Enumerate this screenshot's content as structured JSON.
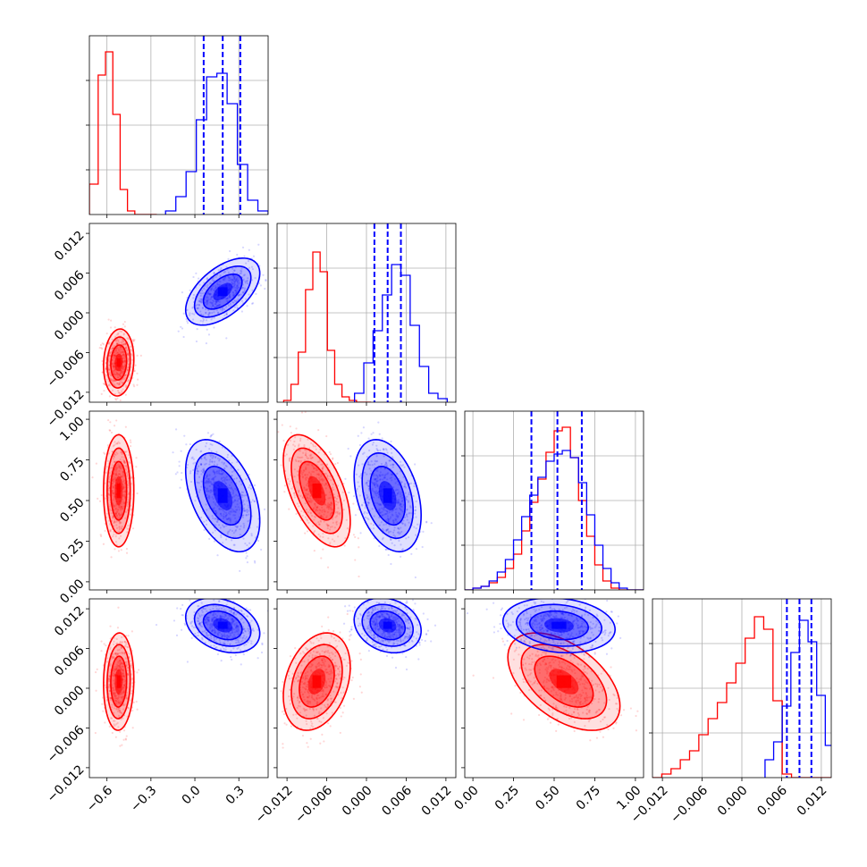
{
  "chart_data": {
    "type": "corner",
    "parameters": 4,
    "grid": true,
    "colors": {
      "red": "#ff0000",
      "blue": "#0000ff"
    },
    "ranges": [
      [
        -0.72,
        0.5
      ],
      [
        -0.0135,
        0.0135
      ],
      [
        -0.05,
        1.05
      ],
      [
        -0.0135,
        0.0135
      ]
    ],
    "tick_values": [
      [
        -0.6,
        -0.3,
        0.0,
        0.3
      ],
      [
        -0.012,
        -0.006,
        0.0,
        0.006,
        0.012
      ],
      [
        0.0,
        0.25,
        0.5,
        0.75,
        1.0
      ],
      [
        -0.012,
        -0.006,
        0.0,
        0.006,
        0.012
      ]
    ],
    "tick_labels": [
      [
        "−0.6",
        "−0.3",
        "0.0",
        "0.3"
      ],
      [
        "−0.012",
        "−0.006",
        "0.000",
        "0.006",
        "0.012"
      ],
      [
        "0.00",
        "0.25",
        "0.50",
        "0.75",
        "1.00"
      ],
      [
        "−0.012",
        "−0.006",
        "0.000",
        "0.006",
        "0.012"
      ]
    ],
    "series": [
      {
        "color": "red",
        "means": [
          -0.52,
          -0.0075,
          0.56,
          0.001
        ],
        "sds": [
          0.045,
          0.0022,
          0.15,
          0.0032
        ],
        "corr": [
          [
            1,
            0.1,
            0,
            0.05
          ],
          [
            0.1,
            1,
            -0.55,
            0.3
          ],
          [
            0,
            -0.55,
            1,
            -0.5
          ],
          [
            0.05,
            0.3,
            -0.5,
            1
          ]
        ],
        "hist_edges": [
          [
            -0.72,
            -0.66,
            -0.61,
            -0.56,
            -0.51,
            -0.46,
            -0.41,
            -0.36,
            -0.31,
            -0.26
          ],
          [
            -0.0125,
            -0.0114,
            -0.0103,
            -0.0092,
            -0.0081,
            -0.007,
            -0.0059,
            -0.0048,
            -0.0037,
            -0.0026,
            -0.0015,
            -0.0004,
            0.0007
          ],
          [
            -0.05,
            0.0,
            0.05,
            0.1,
            0.15,
            0.2,
            0.25,
            0.3,
            0.35,
            0.4,
            0.45,
            0.5,
            0.55,
            0.6,
            0.65,
            0.7,
            0.75,
            0.8,
            0.85,
            0.9,
            0.95,
            1.0,
            1.05
          ],
          [
            -0.0135,
            -0.0121,
            -0.0107,
            -0.0093,
            -0.0079,
            -0.0065,
            -0.0051,
            -0.0037,
            -0.0023,
            -0.0009,
            0.0005,
            0.0019,
            0.0033,
            0.0047,
            0.0061,
            0.0075,
            0.0089,
            0.0103,
            0.0117,
            0.0131,
            0.0145
          ]
        ],
        "hist_counts": [
          [
            0.17,
            0.78,
            0.91,
            0.56,
            0.14,
            0.02,
            0.0,
            0.0,
            0.0
          ],
          [
            0.01,
            0.1,
            0.28,
            0.63,
            0.84,
            0.73,
            0.29,
            0.1,
            0.03,
            0.01,
            0.0,
            0.0
          ],
          [
            0.0,
            0.01,
            0.02,
            0.04,
            0.07,
            0.12,
            0.2,
            0.33,
            0.49,
            0.62,
            0.77,
            0.89,
            0.91,
            0.74,
            0.5,
            0.3,
            0.14,
            0.05,
            0.01,
            0.0,
            0.0,
            0.0
          ],
          [
            0.0,
            0.02,
            0.05,
            0.1,
            0.15,
            0.24,
            0.33,
            0.42,
            0.53,
            0.64,
            0.78,
            0.9,
            0.83,
            0.43,
            0.02,
            0.0,
            0.0,
            0.0,
            0.0,
            0.0
          ]
        ]
      },
      {
        "color": "blue",
        "means": [
          0.19,
          0.0032,
          0.53,
          0.0095
        ],
        "sds": [
          0.11,
          0.0022,
          0.15,
          0.0018
        ],
        "corr": [
          [
            1,
            0.55,
            -0.45,
            -0.3
          ],
          [
            0.55,
            1,
            -0.35,
            -0.2
          ],
          [
            -0.45,
            -0.35,
            1,
            -0.15
          ],
          [
            -0.3,
            -0.2,
            -0.15,
            1
          ]
        ],
        "hist_edges": [
          [
            -0.2,
            -0.13,
            -0.06,
            0.01,
            0.08,
            0.15,
            0.22,
            0.29,
            0.36,
            0.43,
            0.5
          ],
          [
            -0.0018,
            -0.0004,
            0.001,
            0.0024,
            0.0038,
            0.0052,
            0.0066,
            0.008,
            0.0094,
            0.0108,
            0.0122
          ],
          [
            -0.05,
            0.0,
            0.05,
            0.1,
            0.15,
            0.2,
            0.25,
            0.3,
            0.35,
            0.4,
            0.45,
            0.5,
            0.55,
            0.6,
            0.65,
            0.7,
            0.75,
            0.8,
            0.85,
            0.9,
            0.95,
            1.0,
            1.05
          ],
          [
            0.0035,
            0.0048,
            0.0061,
            0.0074,
            0.0087,
            0.01,
            0.0113,
            0.0126,
            0.0139
          ]
        ],
        "hist_counts": [
          [
            0.02,
            0.1,
            0.24,
            0.53,
            0.77,
            0.79,
            0.62,
            0.28,
            0.08,
            0.02
          ],
          [
            0.05,
            0.22,
            0.4,
            0.6,
            0.77,
            0.71,
            0.43,
            0.2,
            0.05,
            0.02
          ],
          [
            0.0,
            0.01,
            0.02,
            0.05,
            0.1,
            0.17,
            0.28,
            0.41,
            0.53,
            0.63,
            0.72,
            0.76,
            0.78,
            0.74,
            0.6,
            0.42,
            0.25,
            0.12,
            0.04,
            0.01,
            0.0,
            0.0
          ],
          [
            0.1,
            0.2,
            0.4,
            0.7,
            0.88,
            0.76,
            0.46,
            0.18
          ]
        ],
        "quantiles": [
          [
            0.06,
            0.19,
            0.31
          ],
          [
            0.0012,
            0.0032,
            0.0052
          ],
          [
            0.36,
            0.52,
            0.67
          ],
          [
            0.0068,
            0.0087,
            0.0105
          ]
        ]
      }
    ]
  }
}
